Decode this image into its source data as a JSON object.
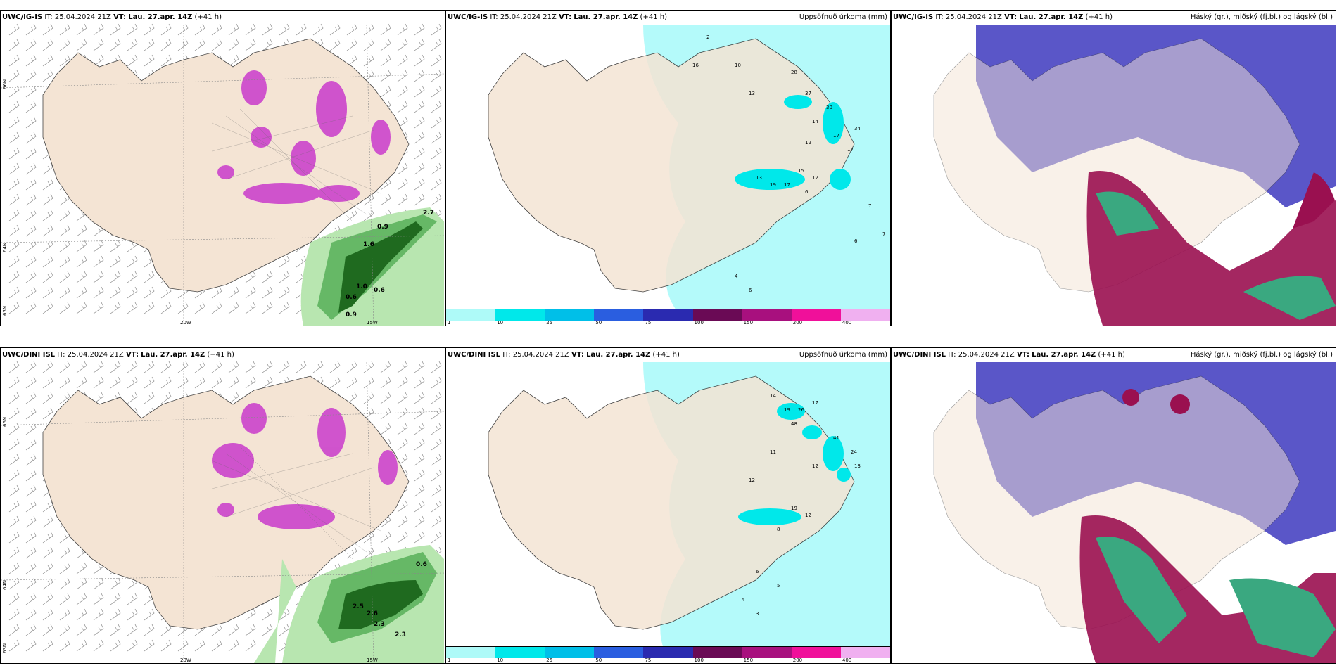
{
  "rows": [
    {
      "model": "UWC/IG-IS",
      "it_label": "IT:",
      "it": "25.04.2024 21Z",
      "vt_label": "VT:",
      "vt": "Lau. 27.apr. 14Z",
      "lead": "(+41 h)"
    },
    {
      "model": "UWC/DINI ISL",
      "it_label": "IT:",
      "it": "25.04.2024 21Z",
      "vt_label": "VT:",
      "vt": "Lau. 27.apr. 14Z",
      "lead": "(+41 h)"
    }
  ],
  "precip_title": "Uppsöfnuð úrkoma (mm)",
  "cloud_title": "Háský (gr.), miðský (fj.bl.) og lágský (bl.)",
  "axis_labels": {
    "lat66": "66N",
    "lat64": "64N",
    "lat63": "63N",
    "lon20": "20W",
    "lon15": "15W"
  },
  "colorbar": {
    "levels": [
      "1",
      "10",
      "25",
      "50",
      "75",
      "100",
      "150",
      "200",
      "400"
    ],
    "colors": [
      "#aefaf8",
      "#00e8ea",
      "#00bfe8",
      "#2a5ee0",
      "#2a2ab0",
      "#6a0a55",
      "#a8107e",
      "#f0109a",
      "#f0b0f0"
    ]
  },
  "colors": {
    "land": "#f4e4d4",
    "sea_precip": "#b4fafa",
    "cloud_high": "#5a56c8",
    "cloud_mid": "#9a1050",
    "cloud_low": "#3aa880",
    "snow_purple": "#cc44cc",
    "rain_green": "#2a8a2a"
  },
  "precip_values_top": [
    "2",
    "16",
    "10",
    "13",
    "28",
    "37",
    "30",
    "34",
    "14",
    "17",
    "17",
    "12",
    "13",
    "15",
    "19",
    "17",
    "12",
    "6",
    "7",
    "7",
    "6",
    "4",
    "6"
  ],
  "precip_values_bottom": [
    "14",
    "19",
    "26",
    "17",
    "48",
    "41",
    "24",
    "13",
    "12",
    "11",
    "12",
    "19",
    "12",
    "8",
    "6",
    "5",
    "4",
    "3"
  ],
  "wind_values_top": [
    "2.7",
    "0.9",
    "1.6",
    "1.0",
    "0.6",
    "0.6",
    "0.9"
  ],
  "wind_values_bottom": [
    "0.6",
    "2.6",
    "2.3",
    "2.5",
    "2.3"
  ]
}
